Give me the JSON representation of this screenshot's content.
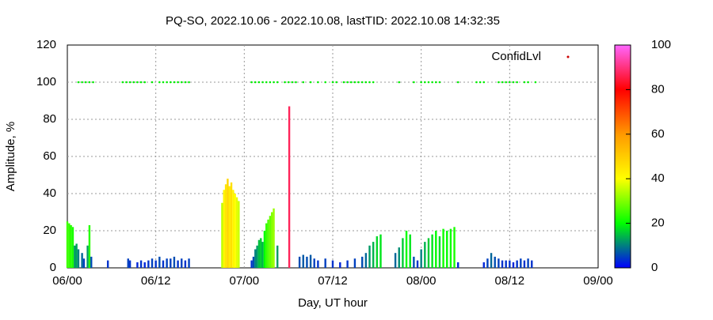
{
  "chart_data": {
    "type": "impulse",
    "title": "PQ-SO, 2022.10.06 - 2022.10.08, lastTID: 2022.10.08 14:32:35",
    "xlabel": "Day, UT hour",
    "ylabel": "Amplitude, %",
    "xlim": [
      0,
      72
    ],
    "xticks": [
      {
        "value": 0,
        "label": "06/00"
      },
      {
        "value": 12,
        "label": "06/12"
      },
      {
        "value": 24,
        "label": "07/00"
      },
      {
        "value": 36,
        "label": "07/12"
      },
      {
        "value": 48,
        "label": "08/00"
      },
      {
        "value": 60,
        "label": "08/12"
      },
      {
        "value": 72,
        "label": "09/00"
      }
    ],
    "ylim": [
      0,
      120
    ],
    "yticks": [
      0,
      20,
      40,
      60,
      80,
      100,
      120
    ],
    "grid": true,
    "cblim": [
      0,
      100
    ],
    "cbticks": [
      0,
      20,
      40,
      60,
      80,
      100
    ],
    "palette": [
      "#0000ff",
      "#00ff00",
      "#ffff00",
      "#ff9900",
      "#ff0000",
      "#ff66ff"
    ],
    "legend": "upper right",
    "series": [
      {
        "name": "Amplitude",
        "x": [
          0,
          0.25,
          0.5,
          0.75,
          1,
          1.25,
          1.5,
          2,
          2.25,
          2.75,
          3,
          3.25,
          5.5,
          8.25,
          8.5,
          9.5,
          10,
          10.5,
          11,
          11.5,
          12,
          12.5,
          13,
          13.5,
          14,
          14.5,
          15,
          15.5,
          16,
          16.5,
          21,
          21.25,
          21.5,
          21.75,
          22,
          22.25,
          22.5,
          22.75,
          23,
          23.25,
          25,
          25.25,
          25.5,
          25.75,
          26,
          26.25,
          26.5,
          26.75,
          27,
          27.25,
          27.5,
          27.75,
          28,
          28.5,
          30.1,
          31.5,
          32,
          32.5,
          33,
          33.5,
          34,
          35,
          36,
          37,
          38,
          39,
          40,
          40.5,
          41,
          41.5,
          42,
          42.5,
          44.5,
          45,
          45.5,
          46,
          46.5,
          47,
          47.5,
          48,
          48.5,
          49,
          49.5,
          50,
          50.5,
          51,
          51.5,
          52,
          52.5,
          53,
          56.5,
          57,
          57.5,
          58,
          58.5,
          59,
          59.5,
          60,
          60.5,
          61,
          61.5,
          62,
          62.5,
          63
        ],
        "values": [
          25,
          24,
          23,
          22,
          12,
          13,
          10,
          8,
          5,
          12,
          23,
          6,
          4,
          5,
          4,
          3,
          4,
          3,
          4,
          5,
          4,
          6,
          4,
          5,
          5,
          6,
          4,
          5,
          4,
          5,
          35,
          42,
          45,
          48,
          44,
          46,
          42,
          40,
          38,
          36,
          4,
          6,
          10,
          12,
          15,
          16,
          14,
          20,
          24,
          26,
          28,
          30,
          32,
          12,
          87,
          6,
          7,
          6,
          7,
          5,
          4,
          5,
          4,
          3,
          4,
          5,
          6,
          8,
          12,
          14,
          17,
          18,
          8,
          11,
          16,
          20,
          18,
          6,
          4,
          10,
          14,
          16,
          18,
          20,
          17,
          21,
          20,
          21,
          22,
          3,
          3,
          5,
          8,
          6,
          5,
          4,
          4,
          4,
          3,
          4,
          5,
          4,
          5,
          4
        ]
      },
      {
        "name": "ConfidLvl",
        "color": "#cc0000",
        "point_color": "#00ee00",
        "x": [
          1.5,
          2,
          2.5,
          3,
          3.5,
          7.5,
          8,
          8.5,
          9,
          9.5,
          10,
          10.5,
          11.5,
          12.5,
          13,
          13.5,
          14,
          14.5,
          15,
          15.5,
          16,
          16.5,
          25,
          25.5,
          26,
          26.5,
          27,
          27.5,
          28,
          28.5,
          29.5,
          30,
          30.5,
          31,
          32,
          33,
          34,
          35,
          36,
          36.5,
          37.5,
          38,
          38.5,
          39,
          39.5,
          40,
          40.5,
          41,
          41.5,
          45,
          47,
          48,
          48.5,
          49,
          49.5,
          50,
          50.5,
          53,
          55.5,
          56,
          56.5,
          58.5,
          59,
          59.5,
          60,
          60.5,
          61,
          62,
          62.5,
          63.5
        ],
        "values": [
          100,
          100,
          100,
          100,
          100,
          100,
          100,
          100,
          100,
          100,
          100,
          100,
          100,
          100,
          100,
          100,
          100,
          100,
          100,
          100,
          100,
          100,
          100,
          100,
          100,
          100,
          100,
          100,
          100,
          100,
          100,
          100,
          100,
          100,
          100,
          100,
          100,
          100,
          100,
          100,
          100,
          100,
          100,
          100,
          100,
          100,
          100,
          100,
          100,
          100,
          100,
          100,
          100,
          100,
          100,
          100,
          100,
          100,
          100,
          100,
          100,
          100,
          100,
          100,
          100,
          100,
          100,
          100,
          100,
          100
        ]
      }
    ]
  }
}
